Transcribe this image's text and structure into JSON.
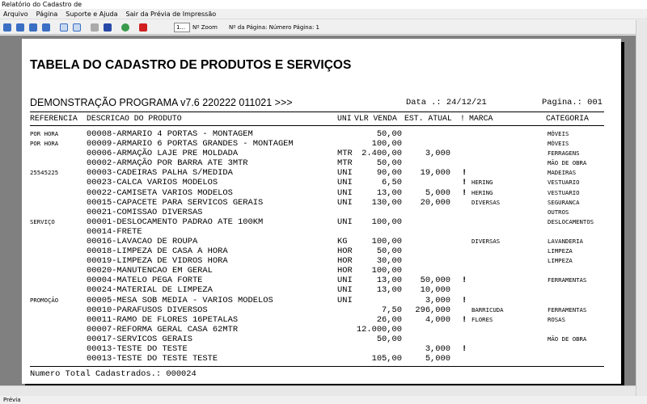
{
  "window": {
    "title": "Relatório do Cadastro de"
  },
  "menu": [
    "Arquivo",
    "Página",
    "Suporte e Ajuda",
    "Sair da Prévia de Impressão"
  ],
  "toolbar": {
    "zoom_value": "1...",
    "zoom_label": "Nº Zoom",
    "page_label": "Nº da Página: Número Página: 1"
  },
  "report": {
    "title": "TABELA DO CADASTRO DE PRODUTOS E SERVIÇOS",
    "subtitle": "DEMONSTRAÇÃO PROGRAMA v7.6 220222 011021 >>>",
    "date": "Data .: 24/12/21",
    "page": "Pagina.: 001",
    "columns": [
      "REFERENCIA",
      "DESCRICAO DO PRODUTO",
      "UNI",
      "VLR VENDA",
      "EST. ATUAL",
      "!",
      "MARCA",
      "CATEGORIA"
    ],
    "rows": [
      [
        "POR HORA",
        "00008-ARMARIO 4 PORTAS - MONTAGEM",
        null,
        "50,00",
        null,
        null,
        null,
        "MÓVEIS"
      ],
      [
        "POR HORA",
        "00009-ARMARIO 6 PORTAS GRANDES - MONTAGEM",
        null,
        "100,00",
        null,
        null,
        null,
        "MÓVEIS"
      ],
      [
        null,
        "00006-ARMAÇÃO LAJE PRE MOLDADA",
        "MTR",
        "2.400,00",
        "3,000",
        null,
        null,
        "FERRAGENS"
      ],
      [
        null,
        "00002-ARMAÇÃO POR BARRA ATE 3MTR",
        "MTR",
        "50,00",
        null,
        null,
        null,
        "MÃO DE OBRA"
      ],
      [
        "25545225",
        "00003-CADEIRAS PALHA S/MEDIDA",
        "UNI",
        "90,00",
        "19,000",
        "!",
        null,
        "MADEIRAS"
      ],
      [
        null,
        "00023-CALCA VARIOS MODELOS",
        "UNI",
        "6,50",
        null,
        "!",
        "HERING",
        "VESTUARIO"
      ],
      [
        null,
        "00022-CAMISETA VARIOS MODELOS",
        "UNI",
        "13,00",
        "5,000",
        "!",
        "HERING",
        "VESTUARIO"
      ],
      [
        null,
        "00015-CAPACETE PARA SERVICOS GERAIS",
        "UNI",
        "130,00",
        "20,000",
        null,
        "DIVERSAS",
        "SEGURANCA"
      ],
      [
        null,
        "00021-COMISSAO DIVERSAS",
        null,
        null,
        null,
        null,
        null,
        "OUTROS"
      ],
      [
        "SERVIÇO",
        "00001-DESLOCAMENTO PADRAO ATE 100KM",
        "UNI",
        "100,00",
        null,
        null,
        null,
        "DESLOCAMENTOS"
      ],
      [
        null,
        "00014-FRETE",
        null,
        null,
        null,
        null,
        null,
        null
      ],
      [
        null,
        "00016-LAVACAO DE ROUPA",
        "KG",
        "100,00",
        null,
        null,
        "DIVERSAS",
        "LAVANDERIA"
      ],
      [
        null,
        "00018-LIMPEZA DE CASA A HORA",
        "HOR",
        "50,00",
        null,
        null,
        null,
        "LIMPEZA"
      ],
      [
        null,
        "00019-LIMPEZA DE VIDROS HORA",
        "HOR",
        "30,00",
        null,
        null,
        null,
        "LIMPEZA"
      ],
      [
        null,
        "00020-MANUTENCAO EM GERAL",
        "HOR",
        "100,00",
        null,
        null,
        null,
        null
      ],
      [
        null,
        "00004-MATELO PEGA FORTE",
        "UNI",
        "13,00",
        "50,000",
        "!",
        null,
        "FERRAMENTAS"
      ],
      [
        null,
        "00024-MATERIAL DE LIMPEZA",
        "UNI",
        "13,00",
        "10,000",
        null,
        null,
        null
      ],
      [
        "PROMOÇÃO",
        "00005-MESA SOB MEDIA - VARIOS MODELOS",
        "UNI",
        null,
        "3,000",
        "!",
        null,
        null
      ],
      [
        null,
        "00010-PARAFUSOS DIVERSOS",
        null,
        "7,50",
        "296,000",
        null,
        "BARRICUDA",
        "FERRAMENTAS"
      ],
      [
        null,
        "00011-RAMO DE FLORES 16PETALAS",
        null,
        "26,00",
        "4,000",
        "!",
        "FLORES",
        "ROSAS"
      ],
      [
        null,
        "00007-REFORMA GERAL CASA 62MTR",
        null,
        "12.000,00",
        null,
        null,
        null,
        null
      ],
      [
        null,
        "00017-SERVICOS GERAIS",
        null,
        "50,00",
        null,
        null,
        null,
        "MÃO DE OBRA"
      ],
      [
        null,
        "00013-TESTE DO TESTE",
        null,
        null,
        "3,000",
        "!",
        null,
        null
      ],
      [
        null,
        "00013-TESTE DO TESTE TESTE",
        null,
        "105,00",
        "5,000",
        null,
        null,
        null
      ]
    ],
    "footer": "Numero Total Cadastrados.: 000024"
  },
  "status": "Prévia"
}
